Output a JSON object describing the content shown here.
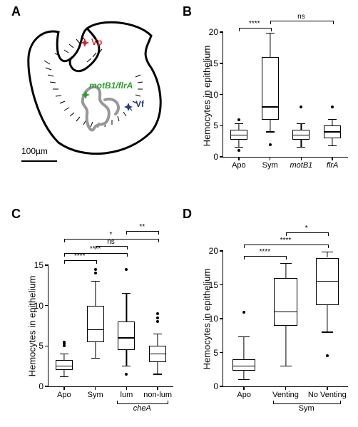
{
  "panelA": {
    "label": "A",
    "scalebar_text": "100µm",
    "labels": {
      "vp": {
        "text": "Vp",
        "color": "#d62728"
      },
      "vf": {
        "text": "Vf",
        "color": "#1f3b8c"
      },
      "motb": {
        "text": "motB1/flrA",
        "color": "#2ca02c"
      }
    }
  },
  "panelB": {
    "label": "B",
    "ylabel": "Hemocytes in epithelium",
    "ylim": [
      0,
      20
    ],
    "ytick_step": 5,
    "categories": [
      "Apo",
      "Sym",
      "motB1",
      "flrA"
    ],
    "italics": [
      false,
      false,
      true,
      true
    ],
    "boxes": [
      {
        "q1": 2.8,
        "median": 3.5,
        "q3": 4.3,
        "wlo": 1.5,
        "whi": 5.3,
        "outliers": [
          1.0,
          6.0
        ]
      },
      {
        "q1": 6.0,
        "median": 8.0,
        "q3": 16.0,
        "wlo": 4.0,
        "whi": 19.8,
        "outliers": [
          2.0
        ]
      },
      {
        "q1": 2.8,
        "median": 3.5,
        "q3": 4.3,
        "wlo": 1.5,
        "whi": 5.3,
        "outliers": [
          8.0
        ]
      },
      {
        "q1": 3.0,
        "median": 4.0,
        "q3": 5.0,
        "wlo": 1.8,
        "whi": 6.0,
        "outliers": [
          8.0
        ]
      }
    ],
    "sig": [
      {
        "from": 0,
        "to": 1,
        "y": 20.7,
        "text": "****"
      },
      {
        "from": 1,
        "to": 3,
        "y": 21.8,
        "text": "ns"
      }
    ]
  },
  "panelC": {
    "label": "C",
    "ylabel": "Hemocytes in epithelium",
    "ylim": [
      0,
      15
    ],
    "ytick_step": 5,
    "categories": [
      "Apo",
      "Sym",
      "lum",
      "non-lum"
    ],
    "italics": [
      false,
      false,
      false,
      false
    ],
    "subgroup": {
      "from": 2,
      "to": 3,
      "text": "cheA",
      "italic": true
    },
    "boxes": [
      {
        "q1": 2.0,
        "median": 2.5,
        "q3": 3.3,
        "wlo": 1.2,
        "whi": 4.0,
        "outliers": [
          5.0,
          5.3,
          5.5
        ]
      },
      {
        "q1": 5.5,
        "median": 7.0,
        "q3": 10.0,
        "wlo": 3.5,
        "whi": 13.0,
        "outliers": [
          14.0,
          14.5
        ]
      },
      {
        "q1": 4.5,
        "median": 6.0,
        "q3": 8.0,
        "wlo": 2.5,
        "whi": 11.5,
        "outliers": [
          1.5,
          14.5
        ]
      },
      {
        "q1": 3.0,
        "median": 4.0,
        "q3": 5.0,
        "wlo": 1.5,
        "whi": 6.5,
        "outliers": [
          8.0,
          8.5,
          9.0
        ]
      }
    ],
    "sig": [
      {
        "from": 0,
        "to": 1,
        "y": 15.6,
        "text": "****"
      },
      {
        "from": 0,
        "to": 2,
        "y": 16.5,
        "text": "****"
      },
      {
        "from": 1,
        "to": 2,
        "y": 17.4,
        "text": "ns"
      },
      {
        "from": 0,
        "to": 3,
        "y": 18.3,
        "text": "*"
      },
      {
        "from": 2,
        "to": 3,
        "y": 19.2,
        "text": "**"
      }
    ]
  },
  "panelD": {
    "label": "D",
    "ylabel": "Hemocytes in epithelium",
    "ylim": [
      0,
      20
    ],
    "ytick_step": 5,
    "categories": [
      "Apo",
      "Venting",
      "No Venting"
    ],
    "italics": [
      false,
      false,
      false
    ],
    "subgroup": {
      "from": 1,
      "to": 2,
      "text": "Sym",
      "italic": false
    },
    "boxes": [
      {
        "q1": 2.3,
        "median": 3.0,
        "q3": 4.0,
        "wlo": 1.0,
        "whi": 7.3,
        "outliers": [
          11.0
        ]
      },
      {
        "q1": 9.0,
        "median": 11.0,
        "q3": 16.0,
        "wlo": 3.0,
        "whi": 18.2,
        "outliers": []
      },
      {
        "q1": 12.0,
        "median": 15.5,
        "q3": 19.0,
        "wlo": 8.0,
        "whi": 19.8,
        "outliers": [
          4.5
        ]
      }
    ],
    "sig": [
      {
        "from": 0,
        "to": 1,
        "y": 19.3,
        "text": "****"
      },
      {
        "from": 0,
        "to": 2,
        "y": 21.0,
        "text": "****"
      },
      {
        "from": 1,
        "to": 2,
        "y": 22.7,
        "text": "*"
      }
    ]
  },
  "colors": {
    "box_stroke": "#000000",
    "box_fill": "#ffffff",
    "axis": "#000000",
    "text": "#000000"
  }
}
